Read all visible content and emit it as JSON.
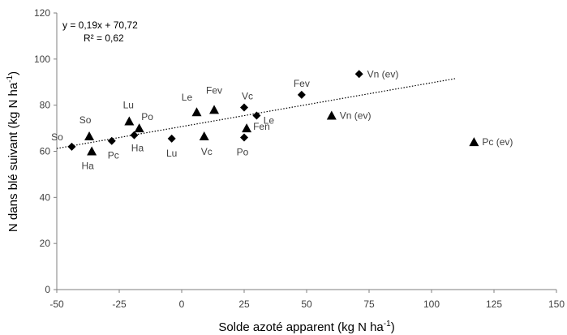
{
  "chart_data": {
    "type": "scatter",
    "xlabel": "Solde azoté apparent (kg N ha",
    "xlabel_sup": "-1",
    "xlabel_end": ")",
    "ylabel": "N dans blé suivant (kg N ha",
    "ylabel_sup": "-1",
    "ylabel_end": ")",
    "xlim": [
      -50,
      150
    ],
    "ylim": [
      0,
      120
    ],
    "xticks": [
      -50,
      -25,
      0,
      25,
      50,
      75,
      100,
      125,
      150
    ],
    "xtick_labels": [
      "-50",
      "-25",
      "0",
      "25",
      "50",
      "75",
      "100",
      "125",
      "150"
    ],
    "yticks": [
      0,
      20,
      40,
      60,
      80,
      100,
      120
    ],
    "ytick_labels": [
      "0",
      "20",
      "40",
      "60",
      "80",
      "100",
      "120"
    ],
    "equation": "y = 0,19x + 70,72",
    "r2": "R² = 0,62",
    "trendline": {
      "slope": 0.19,
      "intercept": 70.72,
      "x_range": [
        -50,
        110
      ],
      "style": "dotted"
    },
    "series": [
      {
        "marker": "diamond",
        "color": "#000000",
        "points": [
          {
            "label": "So",
            "x": -44,
            "y": 62
          },
          {
            "label": "Pc",
            "x": -28,
            "y": 64.5
          },
          {
            "label": "Ha",
            "x": -19,
            "y": 67
          },
          {
            "label": "Lu",
            "x": -4,
            "y": 65.5
          },
          {
            "label": "Po",
            "x": 25,
            "y": 66
          },
          {
            "label": "Vc",
            "x": 25,
            "y": 79
          },
          {
            "label": "Le",
            "x": 30,
            "y": 75.5
          },
          {
            "label": "Fev",
            "x": 48,
            "y": 84.5
          },
          {
            "label": "Vn (ev)",
            "x": 71,
            "y": 93.5
          }
        ]
      },
      {
        "marker": "triangle",
        "color": "#000000",
        "points": [
          {
            "label": "So",
            "x": -37,
            "y": 66.5
          },
          {
            "label": "Ha",
            "x": -36,
            "y": 60
          },
          {
            "label": "Lu",
            "x": -21,
            "y": 73
          },
          {
            "label": "Po",
            "x": -17,
            "y": 70
          },
          {
            "label": "Le",
            "x": 6,
            "y": 77
          },
          {
            "label": "Fev",
            "x": 13,
            "y": 78
          },
          {
            "label": "Vc",
            "x": 9,
            "y": 66.5
          },
          {
            "label": "Fen",
            "x": 26,
            "y": 70
          },
          {
            "label": "Vn (ev)",
            "x": 60,
            "y": 75.5
          },
          {
            "label": "Pc (ev)",
            "x": 117,
            "y": 64
          }
        ]
      }
    ]
  }
}
